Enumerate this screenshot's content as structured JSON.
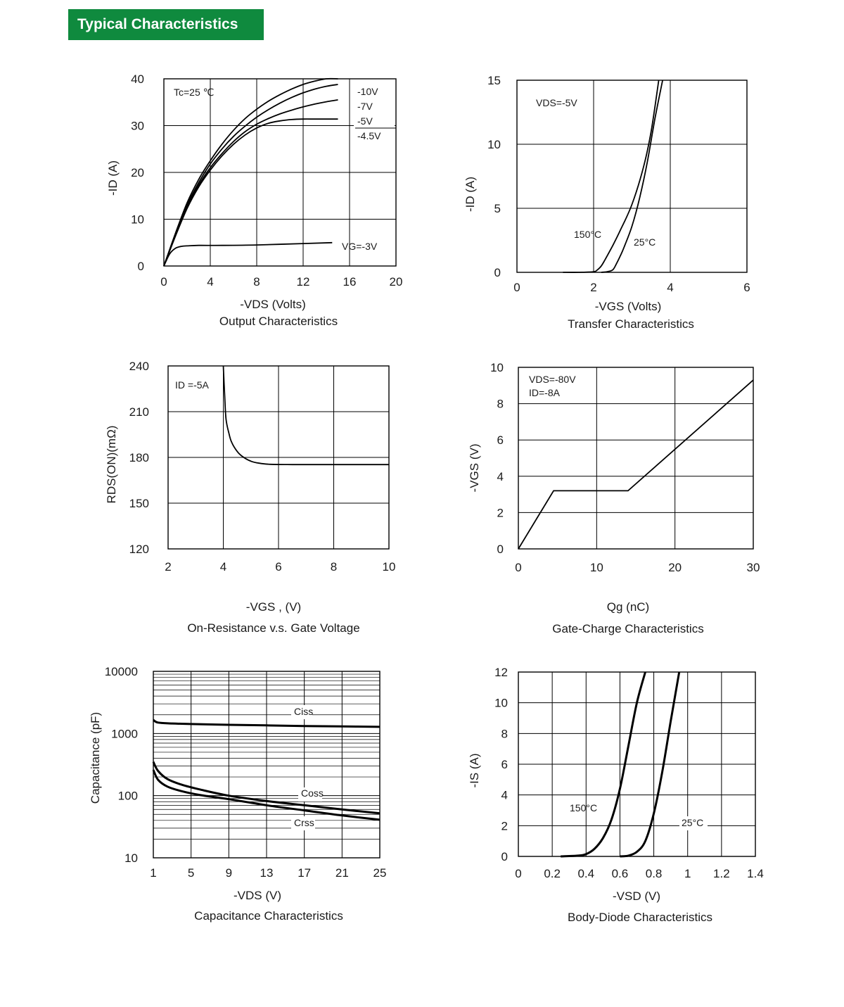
{
  "header": {
    "title": "Typical Characteristics",
    "color": "#0f8a3e"
  },
  "chart_data": [
    {
      "id": "output",
      "type": "line",
      "caption": "Output Characteristics",
      "xlabel": "-VDS (Volts)",
      "ylabel": "-ID (A)",
      "xlim": [
        0,
        20
      ],
      "ylim": [
        0,
        40
      ],
      "xticks": [
        "0",
        "4",
        "8",
        "12",
        "16",
        "20"
      ],
      "yticks": [
        "0",
        "10",
        "20",
        "30",
        "40"
      ],
      "annotations": {
        "condition": "Tc=25 ℃",
        "vg_label": "VG=-3V",
        "legend": [
          "-10V",
          "-7V",
          "-5V",
          "-4.5V"
        ]
      },
      "series": [
        {
          "name": "-10V",
          "x": [
            0,
            1,
            2,
            3,
            4,
            5,
            6,
            7,
            8,
            9,
            10,
            11,
            12,
            13,
            14,
            15
          ],
          "y": [
            0,
            7,
            13.5,
            18.5,
            22.5,
            26,
            29,
            31.5,
            33.5,
            35.2,
            36.6,
            37.8,
            38.8,
            39.5,
            40,
            40.3
          ]
        },
        {
          "name": "-7V",
          "x": [
            0,
            1,
            2,
            3,
            4,
            5,
            6,
            7,
            8,
            9,
            10,
            11,
            12,
            13,
            14,
            15
          ],
          "y": [
            0,
            6.8,
            13,
            17.8,
            21.8,
            25,
            27.7,
            29.9,
            31.8,
            33.4,
            34.8,
            36,
            37,
            37.8,
            38.4,
            38.8
          ]
        },
        {
          "name": "-5V",
          "x": [
            0,
            1,
            2,
            3,
            4,
            5,
            6,
            7,
            8,
            9,
            10,
            11,
            12,
            13,
            14,
            15
          ],
          "y": [
            0,
            6.6,
            12.6,
            17.3,
            21,
            24,
            26.6,
            28.7,
            30.3,
            31.5,
            32.5,
            33.3,
            34,
            34.6,
            35.1,
            35.5
          ]
        },
        {
          "name": "-4.5V",
          "x": [
            0,
            1,
            2,
            3,
            4,
            5,
            6,
            7,
            8,
            9,
            10,
            11,
            12,
            13,
            14,
            15
          ],
          "y": [
            0,
            6.4,
            12.3,
            16.9,
            20.5,
            23.5,
            26,
            28,
            29.5,
            30.5,
            31,
            31.3,
            31.4,
            31.4,
            31.4,
            31.4
          ]
        },
        {
          "name": "VG=-3V",
          "x": [
            0,
            0.5,
            1,
            1.5,
            2,
            3,
            5,
            8,
            12,
            14.5
          ],
          "y": [
            0,
            2.6,
            3.8,
            4.2,
            4.3,
            4.4,
            4.4,
            4.5,
            4.8,
            5
          ]
        }
      ]
    },
    {
      "id": "transfer",
      "type": "line",
      "caption": "Transfer Characteristics",
      "xlabel": "-VGS (Volts)",
      "ylabel": "-ID (A)",
      "xlim": [
        0,
        6
      ],
      "ylim": [
        0,
        15
      ],
      "xticks": [
        "0",
        "2",
        "4",
        "6"
      ],
      "yticks": [
        "0",
        "5",
        "10",
        "15"
      ],
      "annotations": {
        "condition": "VDS=-5V"
      },
      "series": [
        {
          "name": "150°C",
          "x": [
            1.2,
            1.6,
            2.0,
            2.1,
            2.2,
            2.3,
            2.5,
            2.7,
            3.0,
            3.3,
            3.5,
            3.7
          ],
          "y": [
            0,
            0,
            0.05,
            0.2,
            0.5,
            1,
            2.1,
            3.3,
            5.3,
            8.2,
            11,
            15
          ]
        },
        {
          "name": "25°C",
          "x": [
            2.2,
            2.35,
            2.5,
            2.6,
            2.7,
            2.8,
            3.0,
            3.2,
            3.4,
            3.6,
            3.8
          ],
          "y": [
            0,
            0.05,
            0.2,
            0.7,
            1.3,
            2,
            3.6,
            5.8,
            8.6,
            12,
            15
          ]
        }
      ]
    },
    {
      "id": "rdson",
      "type": "line",
      "caption": "On-Resistance v.s. Gate Voltage",
      "xlabel": "-VGS , (V)",
      "ylabel": "RDS(ON)(mΩ)",
      "xlim": [
        2,
        10
      ],
      "ylim": [
        120,
        240
      ],
      "xticks": [
        "2",
        "4",
        "6",
        "8",
        "10"
      ],
      "yticks": [
        "120",
        "150",
        "180",
        "210",
        "240"
      ],
      "annotations": {
        "condition": "ID =-5A"
      },
      "series": [
        {
          "name": "ID=-5A",
          "x": [
            4.0,
            4.05,
            4.1,
            4.2,
            4.3,
            4.5,
            4.7,
            5.0,
            5.3,
            5.7,
            6.5,
            8,
            10
          ],
          "y": [
            240,
            220,
            205,
            196,
            190,
            184,
            180.5,
            177.5,
            176.2,
            175.5,
            175.3,
            175.3,
            175.3
          ]
        }
      ]
    },
    {
      "id": "gate_charge",
      "type": "line",
      "caption": "Gate-Charge Characteristics",
      "xlabel": "Qg (nC)",
      "ylabel": "-VGS (V)",
      "xlim": [
        0,
        30
      ],
      "ylim": [
        0,
        10
      ],
      "xticks": [
        "0",
        "10",
        "20",
        "30"
      ],
      "yticks": [
        "0",
        "2",
        "4",
        "6",
        "8",
        "10"
      ],
      "annotations": {
        "conditions": [
          "VDS=-80V",
          "ID=-8A"
        ]
      },
      "series": [
        {
          "name": "VGS",
          "x": [
            0,
            4.5,
            14,
            30
          ],
          "y": [
            0,
            3.2,
            3.2,
            9.3
          ]
        }
      ]
    },
    {
      "id": "capacitance",
      "type": "line",
      "caption": "Capacitance Characteristics",
      "xlabel": "-VDS (V)",
      "ylabel": "Capacitance (pF)",
      "xlim": [
        1,
        25
      ],
      "ylim": [
        10,
        10000
      ],
      "yscale": "log",
      "xticks": [
        "1",
        "5",
        "9",
        "13",
        "17",
        "21",
        "25"
      ],
      "yticks": [
        "10",
        "100",
        "1000",
        "10000"
      ],
      "series": [
        {
          "name": "Ciss",
          "x": [
            1,
            1.5,
            3,
            5,
            9,
            13,
            17,
            21,
            25
          ],
          "y": [
            1650,
            1500,
            1450,
            1420,
            1380,
            1350,
            1320,
            1300,
            1280
          ]
        },
        {
          "name": "Coss",
          "x": [
            1,
            1.5,
            2.5,
            4,
            6,
            9,
            13,
            17,
            21,
            25
          ],
          "y": [
            350,
            250,
            185,
            150,
            125,
            100,
            82,
            70,
            60,
            52
          ]
        },
        {
          "name": "Crss",
          "x": [
            1,
            1.5,
            2.5,
            4,
            6,
            9,
            13,
            17,
            21,
            25
          ],
          "y": [
            260,
            180,
            140,
            118,
            102,
            88,
            70,
            58,
            48,
            41
          ]
        }
      ]
    },
    {
      "id": "body_diode",
      "type": "line",
      "caption": "Body-Diode Characteristics",
      "xlabel": "-VSD (V)",
      "ylabel": "-IS (A)",
      "xlim": [
        0,
        1.4
      ],
      "ylim": [
        0,
        12
      ],
      "xticks": [
        "0",
        "0.2",
        "0.4",
        "0.6",
        "0.8",
        "1",
        "1.2",
        "1.4"
      ],
      "yticks": [
        "0",
        "2",
        "4",
        "6",
        "8",
        "10",
        "12"
      ],
      "series": [
        {
          "name": "150°C",
          "x": [
            0.25,
            0.35,
            0.4,
            0.45,
            0.5,
            0.55,
            0.6,
            0.65,
            0.7,
            0.75
          ],
          "y": [
            0,
            0.05,
            0.15,
            0.5,
            1.2,
            2.4,
            4.4,
            7.2,
            10,
            12
          ]
        },
        {
          "name": "25°C",
          "x": [
            0.6,
            0.65,
            0.7,
            0.75,
            0.8,
            0.85,
            0.9,
            0.95
          ],
          "y": [
            0,
            0.05,
            0.3,
            1,
            2.8,
            5.5,
            8.8,
            12
          ]
        }
      ]
    }
  ]
}
